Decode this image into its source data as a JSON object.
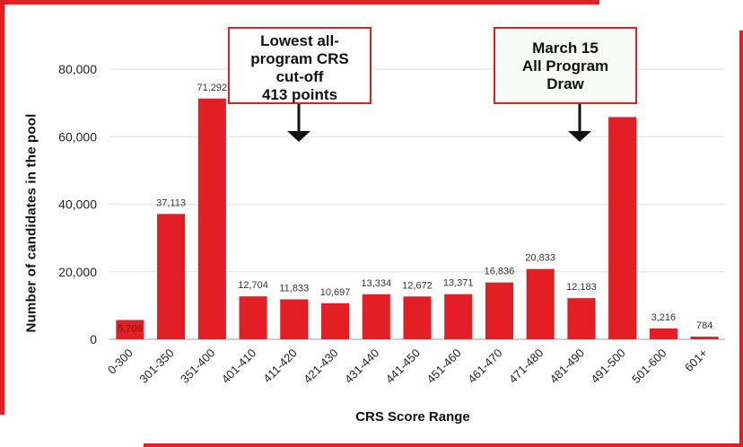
{
  "chart_data": {
    "type": "bar",
    "xlabel": "CRS Score Range",
    "ylabel": "Number of candidates in the pool",
    "ylim": [
      0,
      80000
    ],
    "yticks": [
      "0",
      "20,000",
      "40,000",
      "60,000",
      "80,000"
    ],
    "ytick_values": [
      0,
      20000,
      40000,
      60000,
      80000
    ],
    "grid": true,
    "bar_color": "#e31e24",
    "categories": [
      "0-300",
      "301-350",
      "351-400",
      "401-410",
      "411-420",
      "421-430",
      "431-440",
      "441-450",
      "451-460",
      "461-470",
      "471-480",
      "481-490",
      "491-500",
      "501-600",
      "601+"
    ],
    "values": [
      5706,
      37113,
      71292,
      12704,
      11833,
      10697,
      13334,
      12672,
      13371,
      16836,
      20833,
      12183,
      65800,
      3216,
      784
    ],
    "data_labels": [
      "5,706",
      "37,113",
      "71,292",
      "12,704",
      "11,833",
      "10,697",
      "13,334",
      "12,672",
      "13,371",
      "16,836",
      "20,833",
      "12,183",
      "",
      "3,216",
      "784"
    ]
  },
  "annotations": [
    {
      "lines": [
        "Lowest all-",
        "program CRS",
        "cut-off",
        "413 points"
      ],
      "points_to": "411-420"
    },
    {
      "lines": [
        "March 15",
        "All Program",
        "Draw"
      ],
      "points_to": "491-500"
    }
  ],
  "colors": {
    "accent": "#e31e24",
    "grid": "#e0e0e0",
    "text": "#111111"
  }
}
